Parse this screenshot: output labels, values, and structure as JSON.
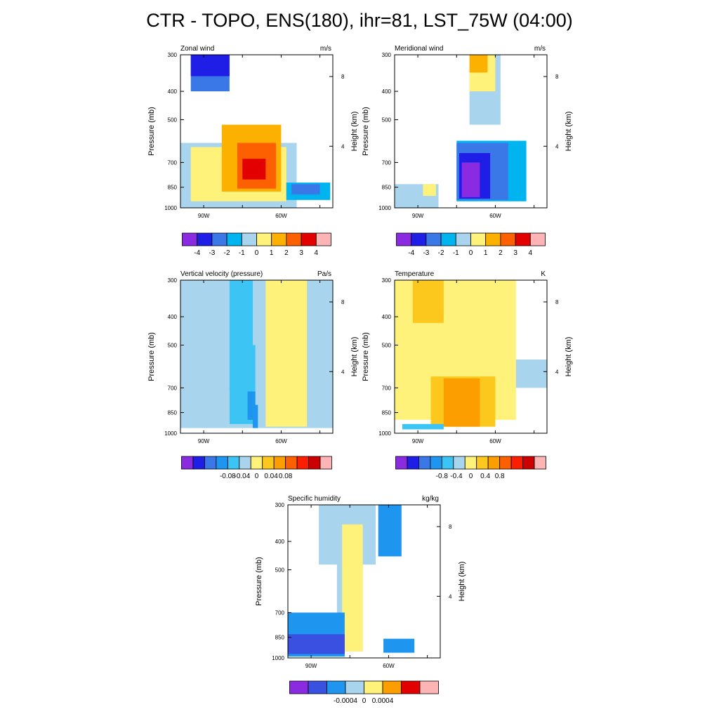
{
  "title": "CTR - TOPO, ENS(180), ihr=81, LST_75W (04:00)",
  "palettes": {
    "wind": [
      "#8a2be2",
      "#1e1ee6",
      "#3a78e8",
      "#00b4f0",
      "#a8d4ee",
      "#fff27a",
      "#fcb100",
      "#fc6000",
      "#e20000",
      "#fcb4b4"
    ],
    "omega": [
      "#8a2be2",
      "#1e1ee6",
      "#3a78e8",
      "#1e96f0",
      "#3cc4f4",
      "#a8d4ee",
      "#fff27a",
      "#fcc81e",
      "#fc9e00",
      "#fc6000",
      "#fc1e00",
      "#cc0000",
      "#fcb4b4"
    ],
    "temp": [
      "#8a2be2",
      "#1e1ee6",
      "#3a78e8",
      "#1e96f0",
      "#3cc4f4",
      "#a8d4ee",
      "#fff27a",
      "#fcc81e",
      "#fc9e00",
      "#fc6000",
      "#fc1e00",
      "#cc0000",
      "#fcb4b4"
    ],
    "q": [
      "#8a2be2",
      "#3a50e0",
      "#1e96f0",
      "#a8d4ee",
      "#fff27a",
      "#fc9e00",
      "#e20000",
      "#fcb4b4"
    ]
  },
  "chart_data": [
    {
      "type": "heatmap",
      "id": "zonal",
      "title": "Zonal wind",
      "units": "m/s",
      "ylabel": "Pressure (mb)",
      "ylabel_right": "Height (km)",
      "x_ticks": [
        "90W",
        "60W"
      ],
      "y_ticks": [
        "300",
        "400",
        "500",
        "700",
        "850",
        "1000"
      ],
      "y2_ticks": [
        "8",
        "4"
      ],
      "colorbar_labels": [
        "-4",
        "-3",
        "-2",
        "-1",
        "0",
        "1",
        "2",
        "3",
        "4"
      ],
      "palette": "wind",
      "fields": [
        {
          "lon": [
            -95,
            -80
          ],
          "p": [
            300,
            400
          ],
          "value": -1.5
        },
        {
          "lon": [
            -95,
            -80
          ],
          "p": [
            300,
            355
          ],
          "value": -2.5
        },
        {
          "lon": [
            -99,
            -54
          ],
          "p": [
            600,
            1000
          ],
          "value": 0.5
        },
        {
          "lon": [
            -95,
            -58
          ],
          "p": [
            620,
            950
          ],
          "value": 1.5
        },
        {
          "lon": [
            -83,
            -60
          ],
          "p": [
            520,
            880
          ],
          "value": 2.5
        },
        {
          "lon": [
            -77,
            -62
          ],
          "p": [
            600,
            860
          ],
          "value": 3.5
        },
        {
          "lon": [
            -75,
            -66
          ],
          "p": [
            680,
            800
          ],
          "value": 4.5
        },
        {
          "lon": [
            -58,
            -41
          ],
          "p": [
            820,
            940
          ],
          "value": -0.5
        },
        {
          "lon": [
            -56,
            -45
          ],
          "p": [
            830,
            900
          ],
          "value": -1.5
        }
      ]
    },
    {
      "type": "heatmap",
      "id": "meridional",
      "title": "Meridional wind",
      "units": "m/s",
      "ylabel": "Pressure (mb)",
      "ylabel_right": "Height (km)",
      "x_ticks": [
        "90W",
        "60W"
      ],
      "y_ticks": [
        "300",
        "400",
        "500",
        "700",
        "850",
        "1000"
      ],
      "y2_ticks": [
        "8",
        "4"
      ],
      "colorbar_labels": [
        "-4",
        "-3",
        "-2",
        "-1",
        "0",
        "1",
        "2",
        "3",
        "4"
      ],
      "palette": "wind",
      "fields": [
        {
          "lon": [
            -70,
            -58
          ],
          "p": [
            300,
            520
          ],
          "value": 0.5
        },
        {
          "lon": [
            -70,
            -60
          ],
          "p": [
            300,
            400
          ],
          "value": 1.5
        },
        {
          "lon": [
            -70,
            -63
          ],
          "p": [
            300,
            345
          ],
          "value": 2.5
        },
        {
          "lon": [
            -99,
            -82
          ],
          "p": [
            830,
            1000
          ],
          "value": 0.5
        },
        {
          "lon": [
            -88,
            -83
          ],
          "p": [
            830,
            910
          ],
          "value": 1.5
        },
        {
          "lon": [
            -75,
            -48
          ],
          "p": [
            590,
            950
          ],
          "value": -0.5
        },
        {
          "lon": [
            -75,
            -55
          ],
          "p": [
            600,
            940
          ],
          "value": -1.5
        },
        {
          "lon": [
            -74,
            -62
          ],
          "p": [
            650,
            930
          ],
          "value": -2.5
        },
        {
          "lon": [
            -73,
            -66
          ],
          "p": [
            700,
            920
          ],
          "value": -3.5
        },
        {
          "lon": [
            -72,
            -67
          ],
          "p": [
            750,
            910
          ],
          "value": -4.5
        }
      ]
    },
    {
      "type": "heatmap",
      "id": "omega",
      "title": "Vertical velocity (pressure)",
      "units": "Pa/s",
      "ylabel": "Pressure (mb)",
      "ylabel_right": "Height (km)",
      "x_ticks": [
        "90W",
        "60W"
      ],
      "y_ticks": [
        "300",
        "400",
        "500",
        "700",
        "850",
        "1000"
      ],
      "y2_ticks": [
        "8",
        "4"
      ],
      "colorbar_labels": [
        "-0.08",
        "-0.04",
        "0",
        "0.04",
        "0.08"
      ],
      "palette": "omega",
      "fields": [
        {
          "lon": [
            -99,
            -65
          ],
          "p": [
            300,
            960
          ],
          "value": -0.01
        },
        {
          "lon": [
            -80,
            -71
          ],
          "p": [
            300,
            930
          ],
          "value": -0.03
        },
        {
          "lon": [
            -76,
            -70
          ],
          "p": [
            500,
            920
          ],
          "value": -0.05
        },
        {
          "lon": [
            -73,
            -70
          ],
          "p": [
            720,
            900
          ],
          "value": -0.07
        },
        {
          "lon": [
            -71,
            -69
          ],
          "p": [
            800,
            960
          ],
          "value": -0.1
        },
        {
          "lon": [
            -90,
            -80
          ],
          "p": [
            720,
            960
          ],
          "value": 0.01
        },
        {
          "lon": [
            -66,
            -40
          ],
          "p": [
            300,
            960
          ],
          "value": 0.01
        },
        {
          "lon": [
            -66,
            -50
          ],
          "p": [
            300,
            950
          ],
          "value": 0.03
        }
      ]
    },
    {
      "type": "heatmap",
      "id": "temperature",
      "title": "Temperature",
      "units": "K",
      "ylabel": "Pressure (mb)",
      "ylabel_right": "Height (km)",
      "x_ticks": [
        "90W",
        "60W"
      ],
      "y_ticks": [
        "300",
        "400",
        "500",
        "700",
        "850",
        "1000"
      ],
      "y2_ticks": [
        "8",
        "4"
      ],
      "colorbar_labels": [
        "-0.8",
        "-0.4",
        "0",
        "0.4",
        "0.8"
      ],
      "palette": "temp",
      "fields": [
        {
          "lon": [
            -99,
            -52
          ],
          "p": [
            300,
            900
          ],
          "value": 0.3
        },
        {
          "lon": [
            -99,
            -70
          ],
          "p": [
            300,
            880
          ],
          "value": 0.5
        },
        {
          "lon": [
            -92,
            -80
          ],
          "p": [
            300,
            420
          ],
          "value": 0.7
        },
        {
          "lon": [
            -88,
            -82
          ],
          "p": [
            300,
            360
          ],
          "value": 0.9
        },
        {
          "lon": [
            -85,
            -60
          ],
          "p": [
            640,
            950
          ],
          "value": 0.9
        },
        {
          "lon": [
            -80,
            -66
          ],
          "p": [
            650,
            950
          ],
          "value": 1.1
        },
        {
          "lon": [
            -52,
            -40
          ],
          "p": [
            560,
            700
          ],
          "value": 0.1
        },
        {
          "lon": [
            -96,
            -80
          ],
          "p": [
            930,
            970
          ],
          "value": -0.3
        }
      ]
    },
    {
      "type": "heatmap",
      "id": "humidity",
      "title": "Specific humidity",
      "units": "kg/kg",
      "ylabel": "Pressure (mb)",
      "ylabel_right": "Height (km)",
      "x_ticks": [
        "90W",
        "60W"
      ],
      "y_ticks": [
        "300",
        "400",
        "500",
        "700",
        "850",
        "1000"
      ],
      "y2_ticks": [
        "8",
        "4"
      ],
      "colorbar_labels": [
        "-0.0004",
        "0",
        "0.0004"
      ],
      "palette": "q",
      "fields": [
        {
          "lon": [
            -87,
            -65
          ],
          "p": [
            300,
            480
          ],
          "value": 0.0001
        },
        {
          "lon": [
            -80,
            -70
          ],
          "p": [
            300,
            950
          ],
          "value": 0.0003
        },
        {
          "lon": [
            -78,
            -70
          ],
          "p": [
            350,
            950
          ],
          "value": 0.0005
        },
        {
          "lon": [
            -99,
            -77
          ],
          "p": [
            700,
            990
          ],
          "value": -0.0003
        },
        {
          "lon": [
            -99,
            -77
          ],
          "p": [
            830,
            970
          ],
          "value": -0.0005
        },
        {
          "lon": [
            -64,
            -55
          ],
          "p": [
            300,
            450
          ],
          "value": -0.0001
        },
        {
          "lon": [
            -62,
            -50
          ],
          "p": [
            860,
            960
          ],
          "value": -0.0003
        }
      ]
    }
  ]
}
